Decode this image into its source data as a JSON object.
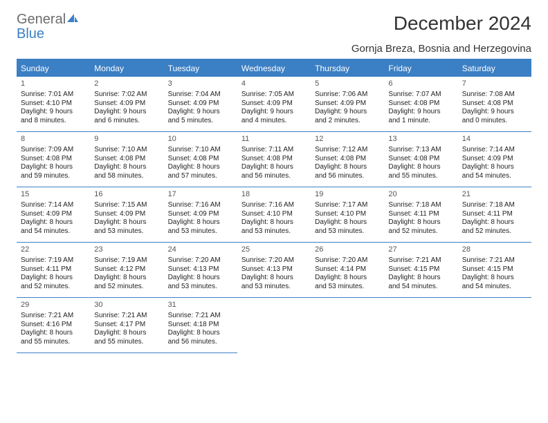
{
  "brand": {
    "top": "General",
    "bottom": "Blue"
  },
  "title": "December 2024",
  "location": "Gornja Breza, Bosnia and Herzegovina",
  "colors": {
    "accent": "#3b7fc4",
    "text": "#333333",
    "muted": "#6c6c6c",
    "bg": "#ffffff"
  },
  "dayHeaders": [
    "Sunday",
    "Monday",
    "Tuesday",
    "Wednesday",
    "Thursday",
    "Friday",
    "Saturday"
  ],
  "days": [
    {
      "n": "1",
      "sr": "Sunrise: 7:01 AM",
      "ss": "Sunset: 4:10 PM",
      "d1": "Daylight: 9 hours",
      "d2": "and 8 minutes."
    },
    {
      "n": "2",
      "sr": "Sunrise: 7:02 AM",
      "ss": "Sunset: 4:09 PM",
      "d1": "Daylight: 9 hours",
      "d2": "and 6 minutes."
    },
    {
      "n": "3",
      "sr": "Sunrise: 7:04 AM",
      "ss": "Sunset: 4:09 PM",
      "d1": "Daylight: 9 hours",
      "d2": "and 5 minutes."
    },
    {
      "n": "4",
      "sr": "Sunrise: 7:05 AM",
      "ss": "Sunset: 4:09 PM",
      "d1": "Daylight: 9 hours",
      "d2": "and 4 minutes."
    },
    {
      "n": "5",
      "sr": "Sunrise: 7:06 AM",
      "ss": "Sunset: 4:09 PM",
      "d1": "Daylight: 9 hours",
      "d2": "and 2 minutes."
    },
    {
      "n": "6",
      "sr": "Sunrise: 7:07 AM",
      "ss": "Sunset: 4:08 PM",
      "d1": "Daylight: 9 hours",
      "d2": "and 1 minute."
    },
    {
      "n": "7",
      "sr": "Sunrise: 7:08 AM",
      "ss": "Sunset: 4:08 PM",
      "d1": "Daylight: 9 hours",
      "d2": "and 0 minutes."
    },
    {
      "n": "8",
      "sr": "Sunrise: 7:09 AM",
      "ss": "Sunset: 4:08 PM",
      "d1": "Daylight: 8 hours",
      "d2": "and 59 minutes."
    },
    {
      "n": "9",
      "sr": "Sunrise: 7:10 AM",
      "ss": "Sunset: 4:08 PM",
      "d1": "Daylight: 8 hours",
      "d2": "and 58 minutes."
    },
    {
      "n": "10",
      "sr": "Sunrise: 7:10 AM",
      "ss": "Sunset: 4:08 PM",
      "d1": "Daylight: 8 hours",
      "d2": "and 57 minutes."
    },
    {
      "n": "11",
      "sr": "Sunrise: 7:11 AM",
      "ss": "Sunset: 4:08 PM",
      "d1": "Daylight: 8 hours",
      "d2": "and 56 minutes."
    },
    {
      "n": "12",
      "sr": "Sunrise: 7:12 AM",
      "ss": "Sunset: 4:08 PM",
      "d1": "Daylight: 8 hours",
      "d2": "and 56 minutes."
    },
    {
      "n": "13",
      "sr": "Sunrise: 7:13 AM",
      "ss": "Sunset: 4:08 PM",
      "d1": "Daylight: 8 hours",
      "d2": "and 55 minutes."
    },
    {
      "n": "14",
      "sr": "Sunrise: 7:14 AM",
      "ss": "Sunset: 4:09 PM",
      "d1": "Daylight: 8 hours",
      "d2": "and 54 minutes."
    },
    {
      "n": "15",
      "sr": "Sunrise: 7:14 AM",
      "ss": "Sunset: 4:09 PM",
      "d1": "Daylight: 8 hours",
      "d2": "and 54 minutes."
    },
    {
      "n": "16",
      "sr": "Sunrise: 7:15 AM",
      "ss": "Sunset: 4:09 PM",
      "d1": "Daylight: 8 hours",
      "d2": "and 53 minutes."
    },
    {
      "n": "17",
      "sr": "Sunrise: 7:16 AM",
      "ss": "Sunset: 4:09 PM",
      "d1": "Daylight: 8 hours",
      "d2": "and 53 minutes."
    },
    {
      "n": "18",
      "sr": "Sunrise: 7:16 AM",
      "ss": "Sunset: 4:10 PM",
      "d1": "Daylight: 8 hours",
      "d2": "and 53 minutes."
    },
    {
      "n": "19",
      "sr": "Sunrise: 7:17 AM",
      "ss": "Sunset: 4:10 PM",
      "d1": "Daylight: 8 hours",
      "d2": "and 53 minutes."
    },
    {
      "n": "20",
      "sr": "Sunrise: 7:18 AM",
      "ss": "Sunset: 4:11 PM",
      "d1": "Daylight: 8 hours",
      "d2": "and 52 minutes."
    },
    {
      "n": "21",
      "sr": "Sunrise: 7:18 AM",
      "ss": "Sunset: 4:11 PM",
      "d1": "Daylight: 8 hours",
      "d2": "and 52 minutes."
    },
    {
      "n": "22",
      "sr": "Sunrise: 7:19 AM",
      "ss": "Sunset: 4:11 PM",
      "d1": "Daylight: 8 hours",
      "d2": "and 52 minutes."
    },
    {
      "n": "23",
      "sr": "Sunrise: 7:19 AM",
      "ss": "Sunset: 4:12 PM",
      "d1": "Daylight: 8 hours",
      "d2": "and 52 minutes."
    },
    {
      "n": "24",
      "sr": "Sunrise: 7:20 AM",
      "ss": "Sunset: 4:13 PM",
      "d1": "Daylight: 8 hours",
      "d2": "and 53 minutes."
    },
    {
      "n": "25",
      "sr": "Sunrise: 7:20 AM",
      "ss": "Sunset: 4:13 PM",
      "d1": "Daylight: 8 hours",
      "d2": "and 53 minutes."
    },
    {
      "n": "26",
      "sr": "Sunrise: 7:20 AM",
      "ss": "Sunset: 4:14 PM",
      "d1": "Daylight: 8 hours",
      "d2": "and 53 minutes."
    },
    {
      "n": "27",
      "sr": "Sunrise: 7:21 AM",
      "ss": "Sunset: 4:15 PM",
      "d1": "Daylight: 8 hours",
      "d2": "and 54 minutes."
    },
    {
      "n": "28",
      "sr": "Sunrise: 7:21 AM",
      "ss": "Sunset: 4:15 PM",
      "d1": "Daylight: 8 hours",
      "d2": "and 54 minutes."
    },
    {
      "n": "29",
      "sr": "Sunrise: 7:21 AM",
      "ss": "Sunset: 4:16 PM",
      "d1": "Daylight: 8 hours",
      "d2": "and 55 minutes."
    },
    {
      "n": "30",
      "sr": "Sunrise: 7:21 AM",
      "ss": "Sunset: 4:17 PM",
      "d1": "Daylight: 8 hours",
      "d2": "and 55 minutes."
    },
    {
      "n": "31",
      "sr": "Sunrise: 7:21 AM",
      "ss": "Sunset: 4:18 PM",
      "d1": "Daylight: 8 hours",
      "d2": "and 56 minutes."
    }
  ]
}
